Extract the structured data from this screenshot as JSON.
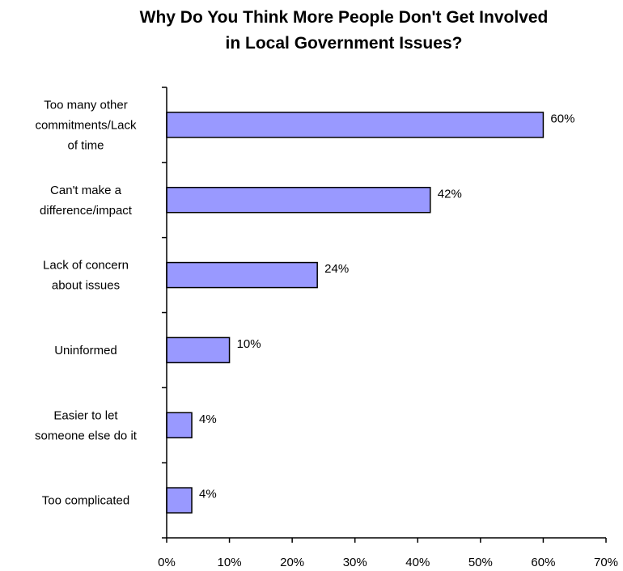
{
  "chart_data": {
    "type": "bar",
    "orientation": "horizontal",
    "title": [
      "Why Do You Think More People Don't Get Involved",
      "in Local Government Issues?"
    ],
    "categories": [
      [
        "Too many other",
        "commitments/Lack",
        "of time"
      ],
      [
        "Can't make a",
        "difference/impact"
      ],
      [
        "Lack of concern",
        "about issues"
      ],
      [
        "Uninformed"
      ],
      [
        "Easier to let",
        "someone else do it"
      ],
      [
        "Too complicated"
      ]
    ],
    "values": [
      60,
      42,
      24,
      10,
      4,
      4
    ],
    "data_labels": [
      "60%",
      "42%",
      "24%",
      "10%",
      "4%",
      "4%"
    ],
    "xlim": [
      0,
      70
    ],
    "xticks": [
      0,
      10,
      20,
      30,
      40,
      50,
      60,
      70
    ],
    "xtick_labels": [
      "0%",
      "10%",
      "20%",
      "30%",
      "40%",
      "50%",
      "60%",
      "70%"
    ],
    "grid": false,
    "legend": "none",
    "bar_color": "#9999ff",
    "bar_border_color": "#000000"
  }
}
